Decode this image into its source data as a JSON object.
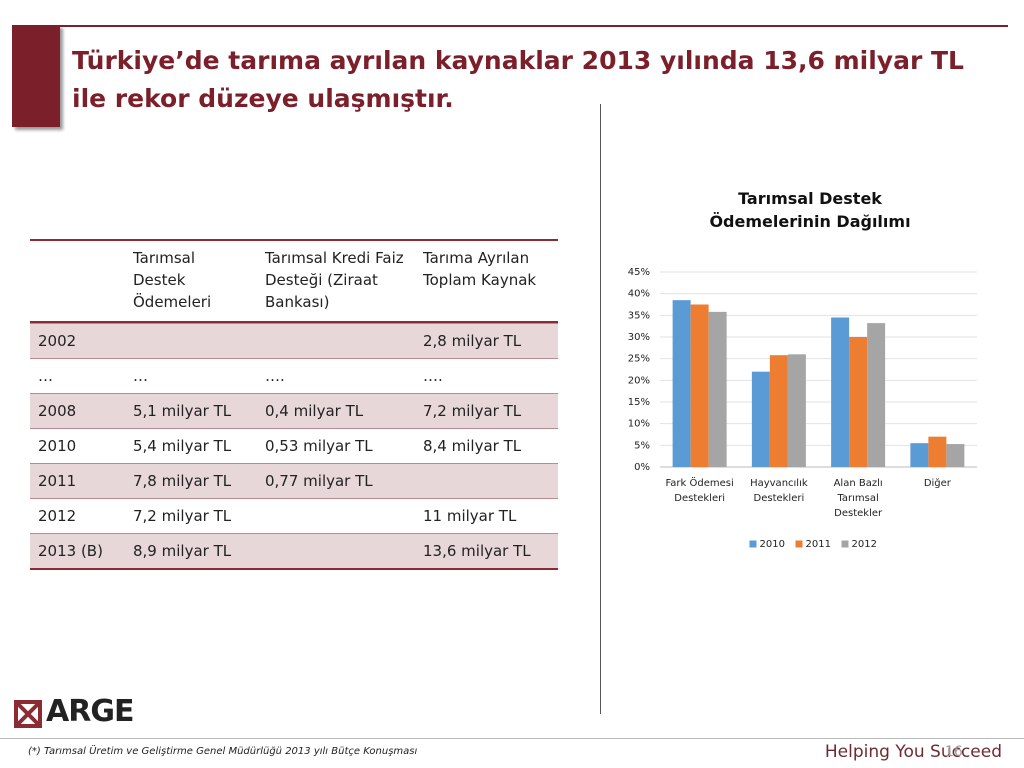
{
  "title": "Türkiye’de tarıma ayrılan kaynaklar 2013 yılında 13,6 milyar TL ile rekor düzeye ulaşmıştır.",
  "table": {
    "header": [
      null,
      "Tarımsal Destek Ödemeleri",
      "Tarımsal Kredi Faiz Desteği (Ziraat Bankası)",
      "Tarıma Ayrılan Toplam Kaynak"
    ],
    "rows": [
      [
        "2002",
        null,
        null,
        "2,8 milyar TL"
      ],
      [
        "…",
        "…",
        "….",
        "…."
      ],
      [
        "2008",
        "5,1 milyar TL",
        "0,4 milyar TL",
        "7,2 milyar TL"
      ],
      [
        "2010",
        "5,4 milyar TL",
        "0,53 milyar TL",
        "8,4 milyar TL"
      ],
      [
        "2011",
        "7,8 milyar TL",
        "0,77 milyar TL",
        null
      ],
      [
        "2012",
        "7,2 milyar TL",
        null,
        "11 milyar TL"
      ],
      [
        "2013 (B)",
        "8,9 milyar TL",
        null,
        "13,6 milyar TL"
      ]
    ]
  },
  "chart_data": {
    "type": "bar",
    "title": "Tarımsal Destek Ödemelerinin Dağılımı",
    "categories": [
      "Fark Ödemesi Destekleri",
      "Hayvancılık Destekleri",
      "Alan Bazlı Tarımsal Destekler",
      "Diğer"
    ],
    "series": [
      {
        "name": "2010",
        "color": "#5b9bd5",
        "values": [
          38.5,
          22,
          34.5,
          5.5
        ]
      },
      {
        "name": "2011",
        "color": "#ed7d31",
        "values": [
          37.5,
          25.8,
          30,
          7
        ]
      },
      {
        "name": "2012",
        "color": "#a5a5a5",
        "values": [
          35.8,
          26,
          33.2,
          5.3
        ]
      }
    ],
    "ylim": [
      0,
      45
    ],
    "yticks": [
      {
        "value": 0,
        "label": "0%"
      },
      {
        "value": 5,
        "label": "5%"
      },
      {
        "value": 10,
        "label": "10%"
      },
      {
        "value": 15,
        "label": "15%"
      },
      {
        "value": 20,
        "label": "20%"
      },
      {
        "value": 25,
        "label": "25%"
      },
      {
        "value": 30,
        "label": "30%"
      },
      {
        "value": 35,
        "label": "35%"
      },
      {
        "value": 40,
        "label": "40%"
      },
      {
        "value": 45,
        "label": "45%"
      }
    ],
    "grid": true,
    "legend": "bottom"
  },
  "logo": "ARGE",
  "footnote": "(*) Tarımsal Üretim ve Geliştirme Genel Müdürlüğü 2013 yılı Bütçe Konuşması",
  "tagline": "Helping You Succeed",
  "page_number": "16"
}
